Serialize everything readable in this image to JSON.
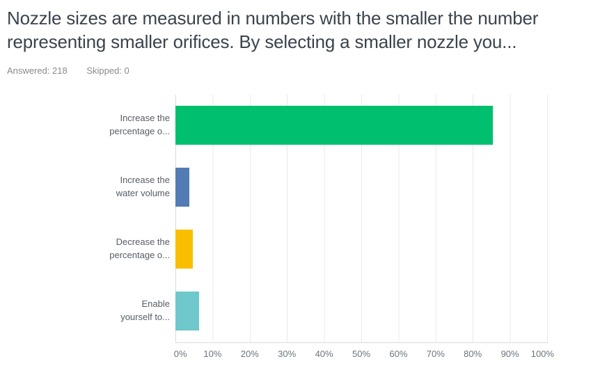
{
  "header": {
    "title": "Nozzle sizes are measured in numbers with the smaller the number\nrepresenting smaller orifices. By selecting a smaller nozzle you...",
    "answered": "Answered: 218",
    "skipped": "Skipped: 0"
  },
  "chart_data": {
    "type": "bar",
    "orientation": "horizontal",
    "title": "",
    "xlabel": "",
    "ylabel": "",
    "xlim": [
      0,
      100
    ],
    "x_tick_labels": [
      "0%",
      "10%",
      "20%",
      "30%",
      "40%",
      "50%",
      "60%",
      "70%",
      "80%",
      "90%",
      "100%"
    ],
    "grid": true,
    "legend": false,
    "categories": [
      "Increase the percentage o...",
      "Increase the water volume",
      "Decrease the percentage o...",
      "Enable yourself to..."
    ],
    "values": [
      85.32,
      3.67,
      4.59,
      6.42
    ],
    "rows": [
      {
        "key": "increase-the-percentage",
        "label_lines": [
          "Increase the",
          "percentage o..."
        ],
        "value": 85.32,
        "color": "#00bf6f"
      },
      {
        "key": "increase-the-water-volume",
        "label_lines": [
          "Increase the",
          "water volume"
        ],
        "value": 3.67,
        "color": "#537cb5"
      },
      {
        "key": "decrease-the-percentage",
        "label_lines": [
          "Decrease the",
          "percentage o..."
        ],
        "value": 4.59,
        "color": "#f9be00"
      },
      {
        "key": "enable-yourself-to",
        "label_lines": [
          "Enable",
          "yourself to..."
        ],
        "value": 6.42,
        "color": "#6ec8cc"
      }
    ],
    "colors": {
      "green": "#00bf6f",
      "blue": "#537cb5",
      "yellow": "#f9be00",
      "teal": "#6ec8cc",
      "gridline": "#e8e9ea",
      "axis_line": "#d8dadc"
    }
  }
}
